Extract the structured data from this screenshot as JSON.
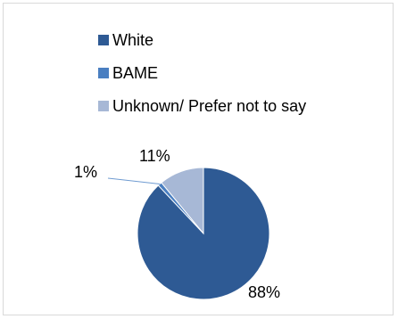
{
  "chart_data": {
    "type": "pie",
    "categories": [
      "White",
      "BAME",
      "Unknown/ Prefer not to say"
    ],
    "values": [
      88,
      1,
      11
    ],
    "data_labels": [
      "88%",
      "1%",
      "11%"
    ],
    "colors": [
      "#2e5a94",
      "#4a7fc1",
      "#a7b8d6"
    ],
    "legend_position": "top"
  }
}
